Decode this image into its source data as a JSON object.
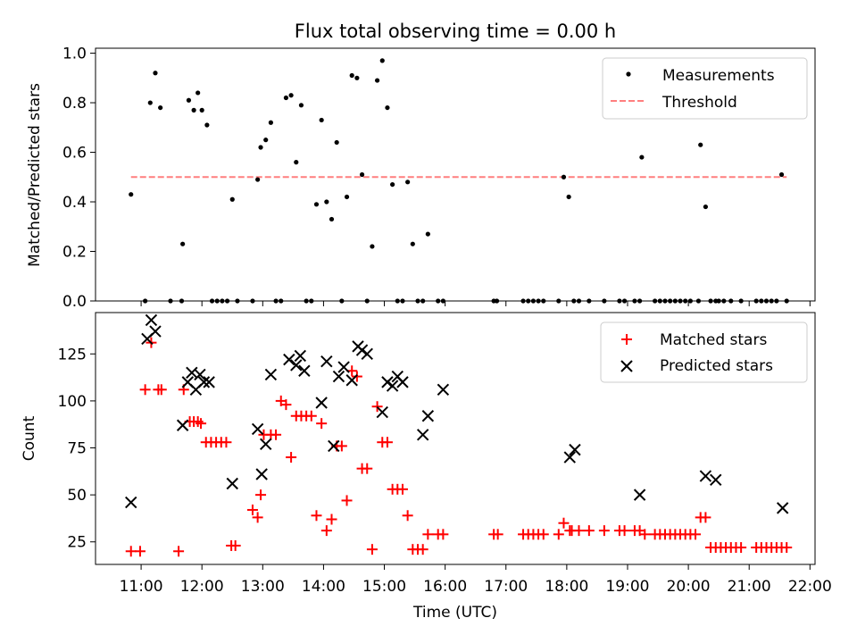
{
  "chart_data": [
    {
      "type": "scatter",
      "title": "Flux total observing time = 0.00 h",
      "ylabel": "Matched/Predicted stars",
      "xlabel": "",
      "ylim": [
        0,
        1.02
      ],
      "yticks": [
        "0.0",
        "0.2",
        "0.4",
        "0.6",
        "0.8",
        "1.0"
      ],
      "grid": false,
      "legend_position": "top-right",
      "series": [
        {
          "name": "Measurements",
          "marker": "dot",
          "color": "#000000",
          "x": [
            "10:50",
            "11:04",
            "11:09",
            "11:14",
            "11:19",
            "11:29",
            "11:40",
            "11:41",
            "11:47",
            "11:52",
            "11:56",
            "12:00",
            "12:05",
            "12:10",
            "12:15",
            "12:20",
            "12:25",
            "12:30",
            "12:35",
            "12:50",
            "12:55",
            "12:58",
            "13:03",
            "13:08",
            "13:13",
            "13:18",
            "13:23",
            "13:28",
            "13:33",
            "13:38",
            "13:43",
            "13:48",
            "13:53",
            "13:58",
            "14:03",
            "14:08",
            "14:13",
            "14:18",
            "14:23",
            "14:28",
            "14:33",
            "14:38",
            "14:43",
            "14:48",
            "14:53",
            "14:58",
            "15:03",
            "15:08",
            "15:13",
            "15:18",
            "15:23",
            "15:28",
            "15:33",
            "15:38",
            "15:43",
            "15:53",
            "15:58",
            "16:48",
            "16:51",
            "17:17",
            "17:22",
            "17:27",
            "17:32",
            "17:37",
            "17:52",
            "17:57",
            "18:02",
            "18:07",
            "18:12",
            "18:22",
            "18:37",
            "18:52",
            "18:57",
            "19:07",
            "19:12",
            "19:14",
            "19:27",
            "19:32",
            "19:37",
            "19:42",
            "19:47",
            "19:52",
            "19:57",
            "20:02",
            "20:10",
            "20:12",
            "20:17",
            "20:22",
            "20:27",
            "20:30",
            "20:35",
            "20:42",
            "20:52",
            "21:07",
            "21:12",
            "21:17",
            "21:22",
            "21:27",
            "21:32",
            "21:37"
          ],
          "y": [
            0.43,
            0.0,
            0.8,
            0.92,
            0.78,
            0.0,
            0.0,
            0.23,
            0.81,
            0.77,
            0.84,
            0.77,
            0.71,
            0.0,
            0.0,
            0.0,
            0.0,
            0.41,
            0.0,
            0.0,
            0.49,
            0.62,
            0.65,
            0.72,
            0.0,
            0.0,
            0.82,
            0.83,
            0.56,
            0.79,
            0.0,
            0.0,
            0.39,
            0.73,
            0.4,
            0.33,
            0.64,
            0.0,
            0.42,
            0.91,
            0.9,
            0.51,
            0.0,
            0.22,
            0.89,
            0.97,
            0.78,
            0.47,
            0.0,
            0.0,
            0.48,
            0.23,
            0.0,
            0.0,
            0.27,
            0.0,
            0.0,
            0.0,
            0.0,
            0.0,
            0.0,
            0.0,
            0.0,
            0.0,
            0.0,
            0.5,
            0.42,
            0.0,
            0.0,
            0.0,
            0.0,
            0.0,
            0.0,
            0.0,
            0.0,
            0.58,
            0.0,
            0.0,
            0.0,
            0.0,
            0.0,
            0.0,
            0.0,
            0.0,
            0.0,
            0.63,
            0.38,
            0.0,
            0.0,
            0.0,
            0.0,
            0.0,
            0.0,
            0.0,
            0.0,
            0.0,
            0.0,
            0.0,
            0.51,
            0.0
          ]
        },
        {
          "name": "Threshold",
          "marker": "dashed-line",
          "color": "#ff7f7f",
          "x": [
            "10:50",
            "21:37"
          ],
          "y": [
            0.5,
            0.5
          ]
        }
      ]
    },
    {
      "type": "scatter",
      "title": "",
      "ylabel": "Count",
      "xlabel": "Time (UTC)",
      "ylim": [
        13,
        147
      ],
      "yticks": [
        "25",
        "50",
        "75",
        "100",
        "125"
      ],
      "xlim": [
        "10:15",
        "22:05"
      ],
      "xticks": [
        "11:00",
        "12:00",
        "13:00",
        "14:00",
        "15:00",
        "16:00",
        "17:00",
        "18:00",
        "19:00",
        "20:00",
        "21:00",
        "22:00"
      ],
      "grid": false,
      "legend_position": "top-right",
      "series": [
        {
          "name": "Matched stars",
          "marker": "plus",
          "color": "#ff0000",
          "x": [
            "10:50",
            "10:59",
            "11:04",
            "11:10",
            "11:17",
            "11:20",
            "11:37",
            "11:42",
            "11:48",
            "11:52",
            "11:56",
            "11:59",
            "12:04",
            "12:09",
            "12:14",
            "12:19",
            "12:24",
            "12:29",
            "12:33",
            "12:50",
            "12:55",
            "12:58",
            "13:01",
            "13:08",
            "13:13",
            "13:18",
            "13:23",
            "13:28",
            "13:33",
            "13:38",
            "13:43",
            "13:48",
            "13:53",
            "13:58",
            "14:03",
            "14:08",
            "14:13",
            "14:18",
            "14:23",
            "14:28",
            "14:33",
            "14:38",
            "14:43",
            "14:48",
            "14:53",
            "14:58",
            "15:03",
            "15:08",
            "15:13",
            "15:18",
            "15:23",
            "15:28",
            "15:33",
            "15:38",
            "15:43",
            "15:53",
            "15:58",
            "16:48",
            "16:52",
            "17:17",
            "17:22",
            "17:27",
            "17:32",
            "17:37",
            "17:52",
            "17:57",
            "18:03",
            "18:05",
            "18:12",
            "18:22",
            "18:37",
            "18:52",
            "18:57",
            "19:07",
            "19:12",
            "19:17",
            "19:27",
            "19:32",
            "19:37",
            "19:42",
            "19:47",
            "19:52",
            "19:57",
            "20:02",
            "20:07",
            "20:12",
            "20:17",
            "20:22",
            "20:27",
            "20:32",
            "20:37",
            "20:42",
            "20:47",
            "20:52",
            "21:07",
            "21:12",
            "21:17",
            "21:22",
            "21:27",
            "21:32",
            "21:37"
          ],
          "y": [
            20,
            20,
            106,
            131,
            106,
            106,
            20,
            106,
            89,
            89,
            89,
            88,
            78,
            78,
            78,
            78,
            78,
            23,
            23,
            42,
            38,
            50,
            82,
            82,
            82,
            100,
            98,
            70,
            92,
            92,
            92,
            92,
            39,
            88,
            31,
            37,
            76,
            76,
            47,
            116,
            113,
            64,
            64,
            21,
            97,
            78,
            78,
            53,
            53,
            53,
            39,
            21,
            21,
            21,
            29,
            29,
            29,
            29,
            29,
            29,
            29,
            29,
            29,
            29,
            29,
            35,
            31,
            31,
            31,
            31,
            31,
            31,
            31,
            31,
            31,
            29,
            29,
            29,
            29,
            29,
            29,
            29,
            29,
            29,
            29,
            38,
            38,
            22,
            22,
            22,
            22,
            22,
            22,
            22,
            22,
            22,
            22,
            22,
            22,
            22,
            22
          ]
        },
        {
          "name": "Predicted stars",
          "marker": "x",
          "color": "#000000",
          "x": [
            "10:50",
            "11:06",
            "11:10",
            "11:14",
            "11:41",
            "11:46",
            "11:50",
            "11:54",
            "11:58",
            "12:02",
            "12:07",
            "12:30",
            "12:55",
            "12:59",
            "13:03",
            "13:08",
            "13:26",
            "13:33",
            "13:37",
            "13:41",
            "13:58",
            "14:03",
            "14:10",
            "14:15",
            "14:20",
            "14:28",
            "14:34",
            "14:38",
            "14:43",
            "14:58",
            "15:03",
            "15:08",
            "15:13",
            "15:18",
            "15:38",
            "15:43",
            "15:58",
            "18:03",
            "18:08",
            "19:12",
            "20:17",
            "20:27",
            "21:33"
          ],
          "y": [
            46,
            133,
            143,
            137,
            87,
            110,
            115,
            106,
            114,
            110,
            110,
            56,
            85,
            61,
            77,
            114,
            122,
            119,
            124,
            116,
            99,
            121,
            76,
            113,
            118,
            111,
            129,
            127,
            125,
            94,
            110,
            108,
            113,
            110,
            82,
            92,
            106,
            70,
            74,
            50,
            60,
            58,
            43
          ]
        }
      ]
    }
  ]
}
